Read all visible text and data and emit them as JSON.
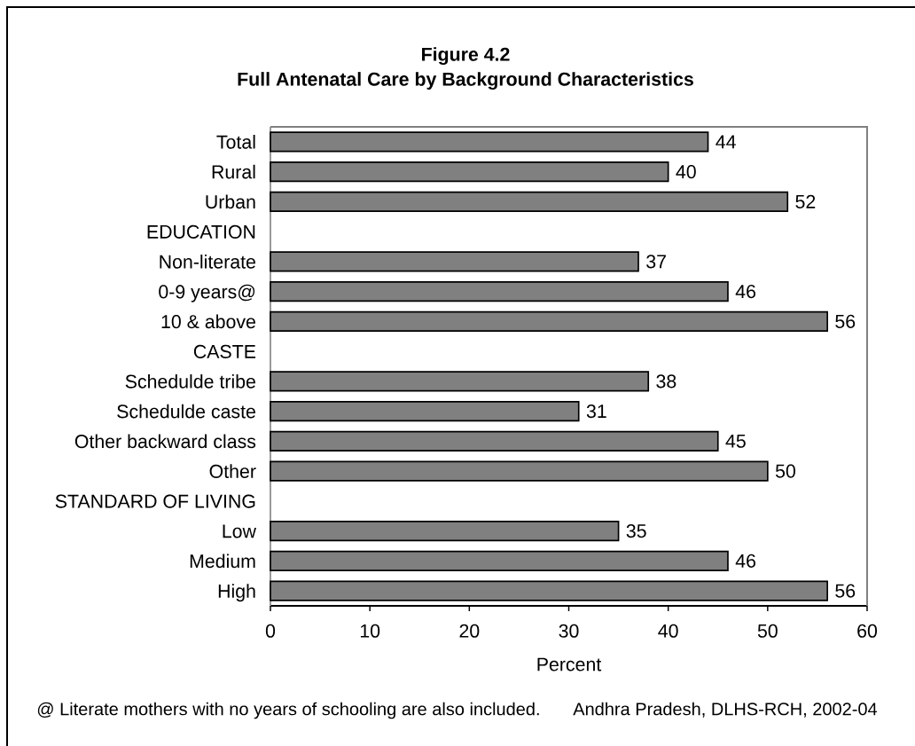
{
  "chart_data": {
    "type": "bar",
    "orientation": "horizontal",
    "title": "Figure 4.2",
    "subtitle": "Full Antenatal Care by Background Characteristics",
    "xlabel": "Percent",
    "categories": [
      "Total",
      "Rural",
      "Urban",
      "EDUCATION",
      "Non-literate",
      "0-9 years@",
      "10 & above",
      "CASTE",
      "Schedulde tribe",
      "Schedulde caste",
      "Other backward class",
      "Other",
      "STANDARD OF LIVING",
      "Low",
      "Medium",
      "High"
    ],
    "values": [
      44,
      40,
      52,
      null,
      37,
      46,
      56,
      null,
      38,
      31,
      45,
      50,
      null,
      35,
      46,
      56
    ],
    "color": "#808080",
    "xlim": [
      0,
      60
    ],
    "xticks": [
      0,
      10,
      20,
      30,
      40,
      50,
      60
    ],
    "data_labels": true,
    "annotations": [
      "@ Literate mothers with no years of schooling are also included.",
      "Andhra Pradesh, DLHS-RCH, 2002-04"
    ]
  }
}
